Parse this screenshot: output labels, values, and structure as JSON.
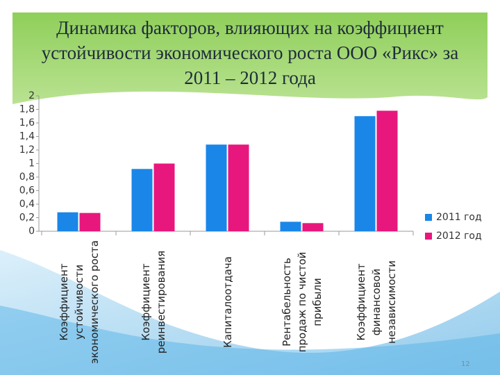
{
  "chart_data": {
    "type": "bar",
    "title": "Динамика факторов, влияющих на коэффициент устойчивости экономического роста ООО «Рикс» за 2011 – 2012 года",
    "categories": [
      "Коэффициент устойчивости экономического роста",
      "Коэффициент реинвестирования",
      "Капиталоотдача",
      "Рентабельность продаж по чистой прибыли",
      "Коэффициент финансовой независимости"
    ],
    "series": [
      {
        "name": "2011 год",
        "color": "#1a86e8",
        "values": [
          0.28,
          0.92,
          1.28,
          0.14,
          1.7
        ]
      },
      {
        "name": "2012 год",
        "color": "#e8177d",
        "values": [
          0.27,
          1.0,
          1.28,
          0.12,
          1.78
        ]
      }
    ],
    "ylim": [
      0,
      2
    ],
    "yticks": [
      0,
      {
        "value": 0.2,
        "label": "0,2"
      },
      {
        "value": 0.4,
        "label": "0,4"
      },
      {
        "value": 0.6,
        "label": "0,6"
      },
      {
        "value": 0.8,
        "label": "0,8"
      },
      1,
      {
        "value": 1.2,
        "label": "1,2"
      },
      {
        "value": 1.4,
        "label": "1,4"
      },
      {
        "value": 1.6,
        "label": "1,6"
      },
      {
        "value": 1.8,
        "label": "1,8"
      },
      2
    ],
    "grid": false,
    "legend": "right"
  },
  "page_number": "12"
}
